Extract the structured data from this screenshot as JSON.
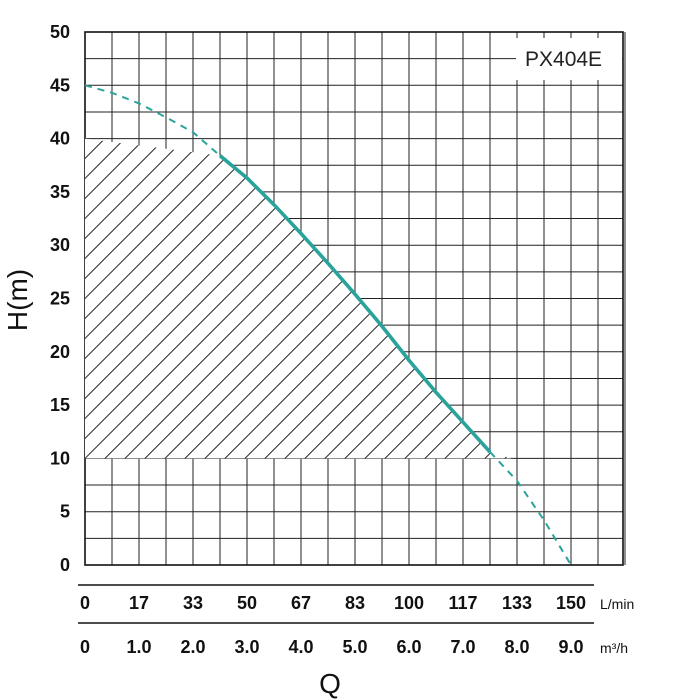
{
  "chart_data": {
    "type": "line",
    "model_label": "PX404E",
    "ylabel": "H(m)",
    "xlabel": "Q",
    "y_ticks": [
      "0",
      "5",
      "10",
      "15",
      "20",
      "25",
      "30",
      "35",
      "40",
      "45",
      "50"
    ],
    "ylim": [
      0,
      50
    ],
    "x_ticks_flow_lmin": [
      "0",
      "17",
      "33",
      "50",
      "67",
      "83",
      "100",
      "117",
      "133",
      "150"
    ],
    "x_unit_lmin": "L/min",
    "x_ticks_flow_m3h": [
      "0",
      "1.0",
      "2.0",
      "3.0",
      "4.0",
      "5.0",
      "6.0",
      "7.0",
      "8.0",
      "9.0"
    ],
    "x_unit_m3h": "m³/h",
    "xlim": [
      0,
      10
    ],
    "grid": true,
    "curve_color": "#2aa39b",
    "series": [
      {
        "q_m3h": [
          0,
          0.5,
          1.0,
          1.5,
          2.0,
          2.5,
          3.0,
          3.5,
          4.0,
          4.5,
          5.0,
          5.5,
          6.0,
          6.5,
          7.0,
          7.5,
          8.0,
          8.5,
          9.0
        ],
        "h_m": [
          45,
          44.3,
          43.3,
          42.0,
          40.6,
          38.4,
          36.3,
          33.8,
          31.1,
          28.3,
          25.4,
          22.4,
          19.2,
          16.2,
          13.4,
          10.6,
          7.9,
          4.2,
          0
        ]
      }
    ],
    "operating_range": {
      "q_min": 0,
      "q_max": 7.9,
      "h_min": 10,
      "h_max": 40
    }
  }
}
